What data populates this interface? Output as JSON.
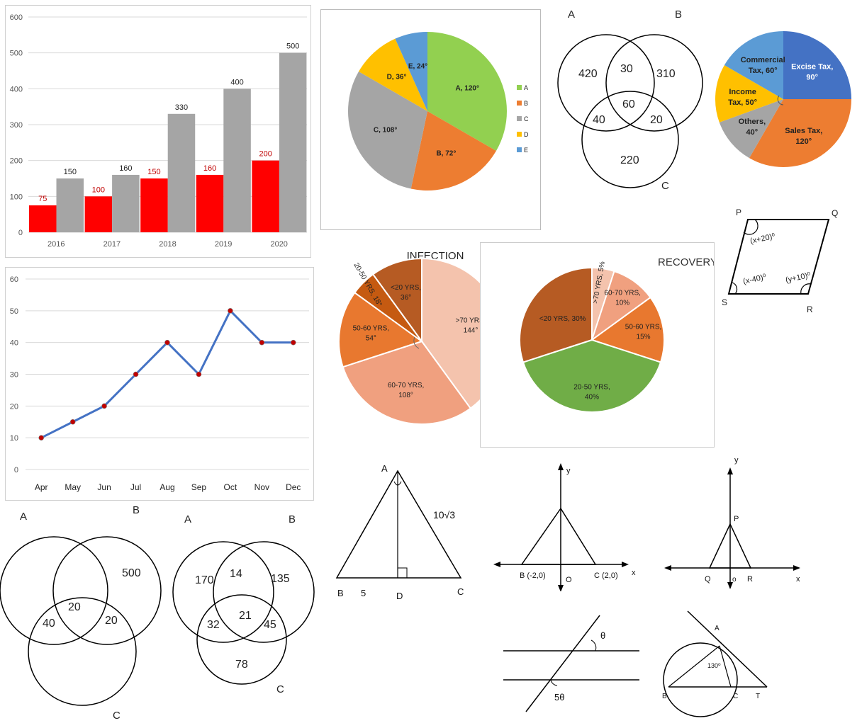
{
  "bar_chart": {
    "chart_data": {
      "type": "bar",
      "categories": [
        "2016",
        "2017",
        "2018",
        "2019",
        "2020"
      ],
      "series": [
        {
          "values": [
            75,
            100,
            150,
            160,
            200
          ],
          "color": "#ff0000"
        },
        {
          "values": [
            150,
            160,
            330,
            400,
            500
          ],
          "color": "#a5a5a5"
        }
      ],
      "ylim": [
        0,
        600
      ],
      "yticks": [
        "0",
        "100",
        "200",
        "300",
        "400",
        "500",
        "600"
      ],
      "data_labels_red": [
        "75",
        "100",
        "150",
        "160",
        "200"
      ],
      "data_labels_grey": [
        "150",
        "160",
        "330",
        "400",
        "500"
      ],
      "grid": true
    }
  },
  "line_chart": {
    "chart_data": {
      "type": "line",
      "categories": [
        "Apr",
        "May",
        "Jun",
        "Jul",
        "Aug",
        "Sep",
        "Oct",
        "Nov",
        "Dec"
      ],
      "values": [
        10,
        15,
        20,
        30,
        40,
        30,
        50,
        40,
        40
      ],
      "ylim": [
        0,
        60
      ],
      "yticks": [
        "0",
        "10",
        "20",
        "30",
        "40",
        "50",
        "60"
      ],
      "line_color": "#4472c4",
      "marker_color": "#c00000",
      "grid": true
    }
  },
  "pie_abcde": {
    "chart_data": {
      "type": "pie",
      "slices": [
        {
          "label": "A, 120°",
          "value": 120,
          "color": "#92d050"
        },
        {
          "label": "B, 72°",
          "value": 72,
          "color": "#ed7d31"
        },
        {
          "label": "C, 108°",
          "value": 108,
          "color": "#a5a5a5"
        },
        {
          "label": "D, 36°",
          "value": 36,
          "color": "#ffc000"
        },
        {
          "label": "E, 24°",
          "value": 24,
          "color": "#5b9bd5"
        }
      ],
      "legend": [
        "A",
        "B",
        "C",
        "D",
        "E"
      ],
      "legend_position": "right"
    }
  },
  "venn_top": {
    "labels": [
      "A",
      "B",
      "C"
    ],
    "regions": [
      "420",
      "30",
      "310",
      "60",
      "40",
      "20",
      "220"
    ]
  },
  "pie_tax": {
    "chart_data": {
      "type": "pie",
      "slices": [
        {
          "label_line1": "Excise Tax,",
          "label_line2": "90°",
          "value": 90,
          "color": "#4472c4"
        },
        {
          "label_line1": "Sales Tax,",
          "label_line2": "120°",
          "value": 120,
          "color": "#ed7d31"
        },
        {
          "label_line1": "Others,",
          "label_line2": "40°",
          "value": 40,
          "color": "#a5a5a5"
        },
        {
          "label_line1": "Income",
          "label_line2": "Tax, 50°",
          "value": 50,
          "color": "#ffc000"
        },
        {
          "label_line1": "Commercial",
          "label_line2": "Tax, 60°",
          "value": 60,
          "color": "#5b9bd5"
        }
      ]
    }
  },
  "parallelogram": {
    "vertices": [
      "P",
      "Q",
      "S",
      "R"
    ],
    "angles": [
      "(x+20)⁰",
      "(x-40)⁰",
      "(y+10)⁰"
    ]
  },
  "pie_infection": {
    "chart_data": {
      "type": "pie",
      "title": "INFECTION",
      "slices": [
        {
          "label_line1": ">70 YRS,",
          "label_line2": "144°",
          "value": 144,
          "color": "#f4c3ad"
        },
        {
          "label_line1": "60-70 YRS,",
          "label_line2": "108°",
          "value": 108,
          "color": "#f0a07f"
        },
        {
          "label_line1": "50-60 YRS,",
          "label_line2": "54°",
          "value": 54,
          "color": "#e8782f"
        },
        {
          "label_line1": "20-50 YRS, 18°",
          "label_line2": "",
          "value": 18,
          "color": "#c55a11"
        },
        {
          "label_line1": "<20 YRS,",
          "label_line2": "36°",
          "value": 36,
          "color": "#b65b23"
        }
      ]
    }
  },
  "pie_recovery": {
    "chart_data": {
      "type": "pie",
      "title": "RECOVERY",
      "slices": [
        {
          "label_line1": ">70 YRS, 5%",
          "label_line2": "",
          "value": 5,
          "color": "#f4c3ad"
        },
        {
          "label_line1": "60-70 YRS,",
          "label_line2": "10%",
          "value": 10,
          "color": "#f0a07f"
        },
        {
          "label_line1": "50-60 YRS,",
          "label_line2": "15%",
          "value": 15,
          "color": "#e8782f"
        },
        {
          "label_line1": "20-50 YRS,",
          "label_line2": "40%",
          "value": 40,
          "color": "#70ad47"
        },
        {
          "label_line1": "<20 YRS, 30%",
          "label_line2": "",
          "value": 30,
          "color": "#b65b23"
        }
      ]
    }
  },
  "venn_bottom_left": {
    "labels": [
      "A",
      "B",
      "C"
    ],
    "regions": [
      "500",
      "20",
      "40",
      "20"
    ]
  },
  "venn_bottom_mid": {
    "labels": [
      "A",
      "B",
      "C"
    ],
    "regions": [
      "170",
      "14",
      "135",
      "32",
      "21",
      "45",
      "78"
    ]
  },
  "triangle_abc": {
    "labels": [
      "A",
      "B",
      "C",
      "D"
    ],
    "base_segment": "5",
    "side": "10√3"
  },
  "coord_triangle": {
    "axis_y": "y",
    "axis_x": "x",
    "origin": "O",
    "point_b": "B (-2,0)",
    "point_c": "C (2,0)"
  },
  "coord_pqr": {
    "axis_y": "y",
    "axis_x": "x",
    "origin": "o",
    "point_p": "P",
    "point_q": "Q",
    "point_r": "R"
  },
  "parallel_lines": {
    "angle_top": "θ",
    "angle_bottom": "5θ"
  },
  "circle_tangent": {
    "points": [
      "A",
      "B",
      "C",
      "T"
    ],
    "angle": "130⁰"
  }
}
